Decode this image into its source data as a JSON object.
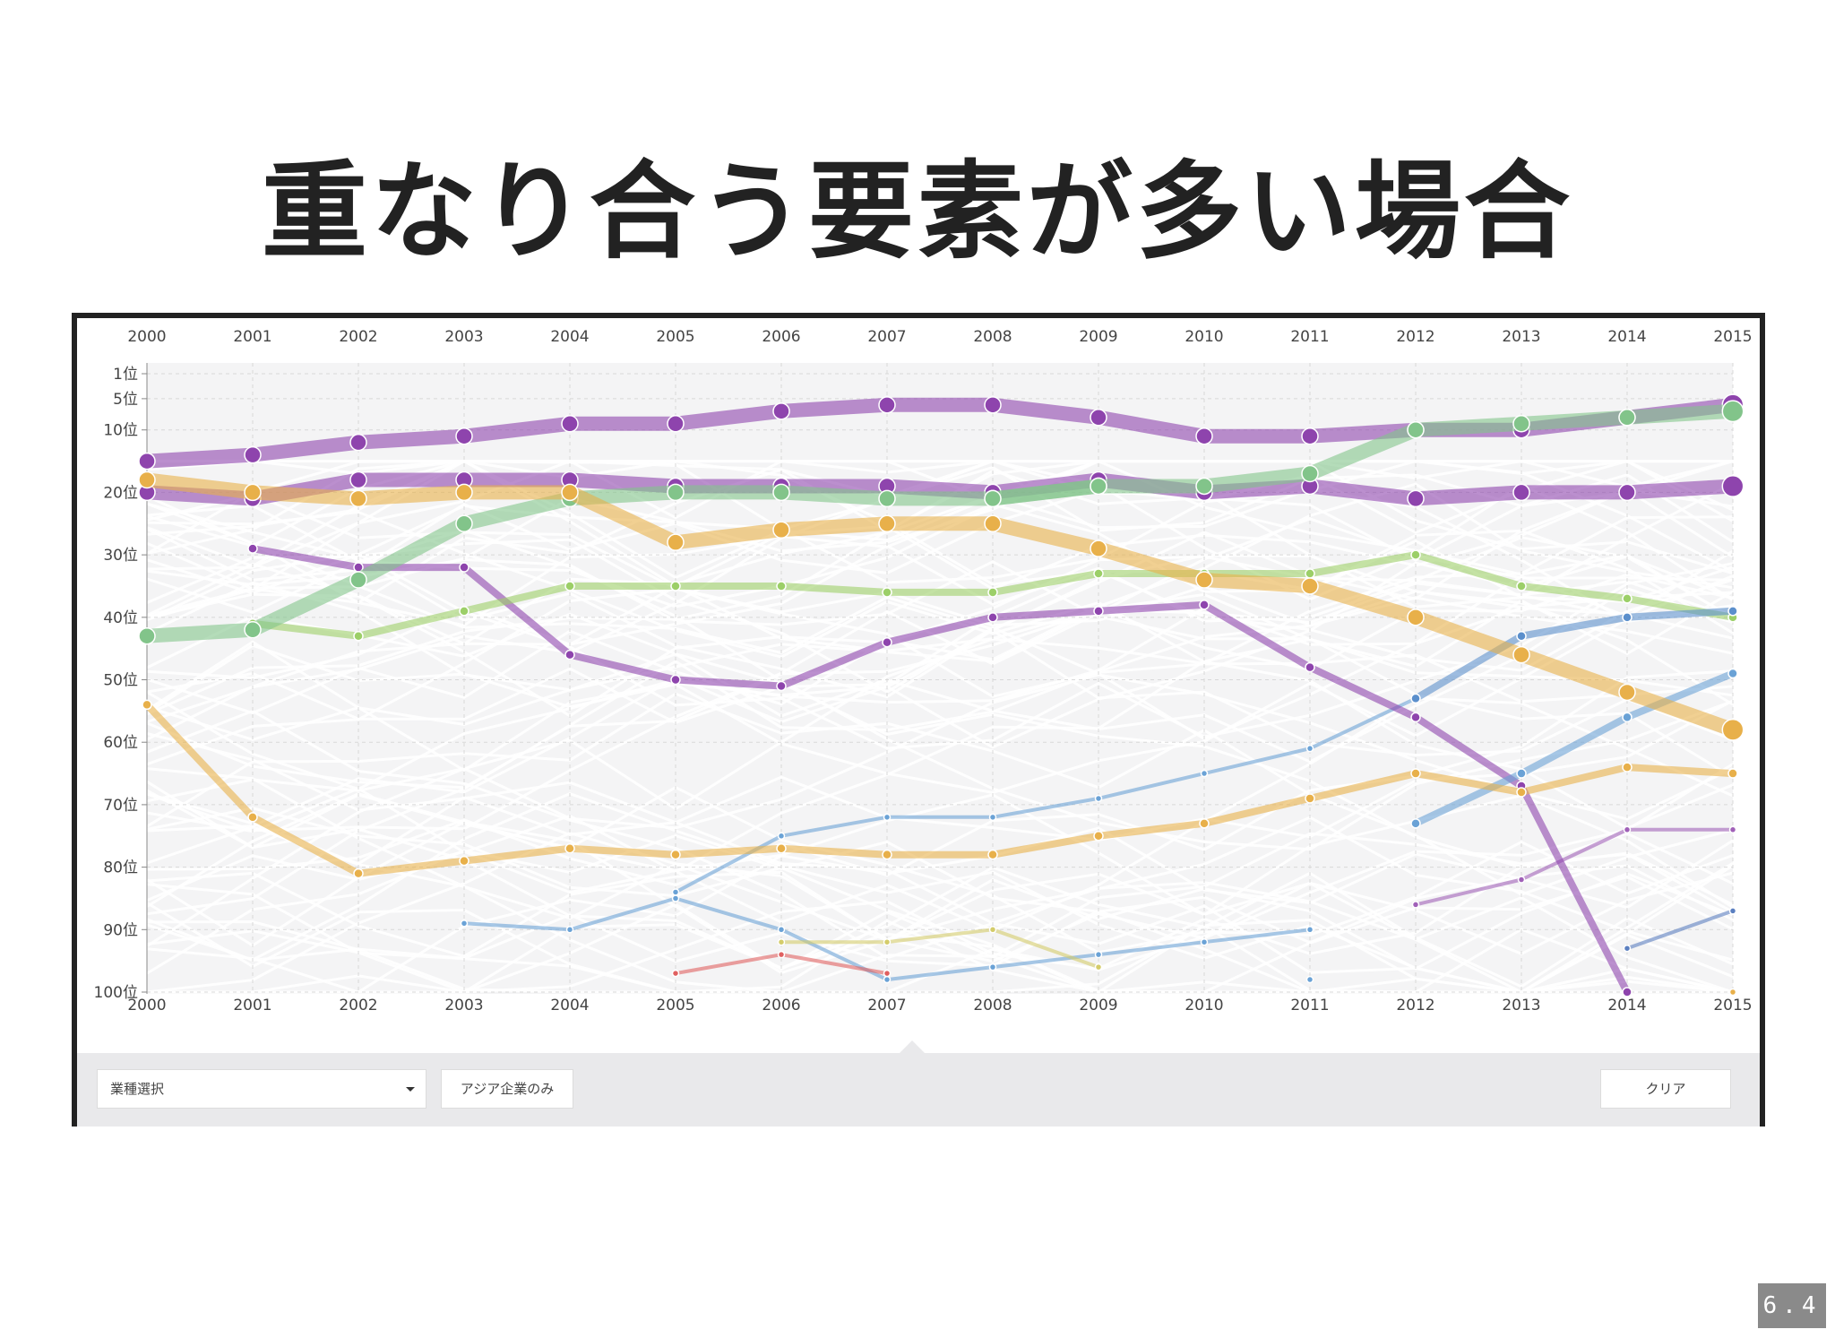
{
  "slide": {
    "title": "重なり合う要素が多い場合",
    "page_number": "6.4"
  },
  "controls": {
    "industry_select": "業種選択",
    "asia_only": "アジア企業のみ",
    "clear": "クリア"
  },
  "chart_data": {
    "type": "line",
    "title": "",
    "xlabel": "",
    "ylabel": "",
    "x": [
      2000,
      2001,
      2002,
      2003,
      2004,
      2005,
      2006,
      2007,
      2008,
      2009,
      2010,
      2011,
      2012,
      2013,
      2014,
      2015
    ],
    "x_ticks": [
      "2000",
      "2001",
      "2002",
      "2003",
      "2004",
      "2005",
      "2006",
      "2007",
      "2008",
      "2009",
      "2010",
      "2011",
      "2012",
      "2013",
      "2014",
      "2015"
    ],
    "y_ticks": [
      {
        "value": 1,
        "label": "1位"
      },
      {
        "value": 5,
        "label": "5位"
      },
      {
        "value": 10,
        "label": "10位"
      },
      {
        "value": 20,
        "label": "20位"
      },
      {
        "value": 30,
        "label": "30位"
      },
      {
        "value": 40,
        "label": "40位"
      },
      {
        "value": 50,
        "label": "50位"
      },
      {
        "value": 60,
        "label": "60位"
      },
      {
        "value": 70,
        "label": "70位"
      },
      {
        "value": 80,
        "label": "80位"
      },
      {
        "value": 90,
        "label": "90位"
      },
      {
        "value": 100,
        "label": "100位"
      }
    ],
    "ylim": [
      1,
      100
    ],
    "y_inverted": true,
    "grid": true,
    "background_lines": "many faint grey rank lines",
    "series": [
      {
        "color": "#8e44ad",
        "weight": "thick",
        "values": [
          15,
          14,
          12,
          11,
          9,
          9,
          7,
          6,
          6,
          8,
          11,
          11,
          10,
          10,
          8,
          6
        ]
      },
      {
        "color": "#8e44ad",
        "weight": "thick",
        "values": [
          20,
          21,
          18,
          18,
          18,
          19,
          19,
          19,
          20,
          18,
          20,
          19,
          21,
          20,
          20,
          19
        ]
      },
      {
        "color": "#82c48a",
        "weight": "thick",
        "values": [
          null,
          null,
          null,
          null,
          null,
          null,
          null,
          null,
          21,
          19,
          19,
          17,
          10,
          9,
          8,
          7
        ]
      },
      {
        "color": "#82c48a",
        "weight": "thick",
        "values": [
          43,
          42,
          34,
          25,
          21,
          20,
          20,
          21,
          21,
          19,
          null,
          null,
          null,
          null,
          null,
          null
        ]
      },
      {
        "color": "#e8b04a",
        "weight": "thick",
        "values": [
          18,
          20,
          21,
          20,
          20,
          28,
          26,
          25,
          25,
          29,
          34,
          35,
          40,
          46,
          52,
          58
        ]
      },
      {
        "color": "#8e44ad",
        "weight": "medium",
        "values": [
          null,
          29,
          32,
          32,
          46,
          50,
          51,
          44,
          40,
          39,
          38,
          48,
          56,
          67,
          100,
          null
        ]
      },
      {
        "color": "#9ccf68",
        "weight": "medium",
        "values": [
          null,
          41,
          43,
          39,
          35,
          35,
          35,
          36,
          36,
          33,
          33,
          33,
          30,
          35,
          37,
          40
        ]
      },
      {
        "color": "#5b8fcc",
        "weight": "medium",
        "values": [
          null,
          null,
          null,
          null,
          null,
          null,
          null,
          null,
          null,
          null,
          null,
          null,
          53,
          43,
          40,
          39
        ]
      },
      {
        "color": "#6aa2d6",
        "weight": "medium",
        "values": [
          null,
          null,
          null,
          null,
          null,
          null,
          null,
          null,
          null,
          null,
          null,
          null,
          73,
          65,
          56,
          49
        ]
      },
      {
        "color": "#e8b04a",
        "weight": "medium",
        "values": [
          54,
          72,
          81,
          79,
          77,
          78,
          77,
          78,
          78,
          75,
          73,
          69,
          65,
          68,
          64,
          65
        ]
      },
      {
        "color": "#6aa2d6",
        "weight": "thin",
        "values": [
          null,
          null,
          null,
          null,
          null,
          84,
          75,
          72,
          72,
          69,
          65,
          61,
          53,
          null,
          null,
          null
        ]
      },
      {
        "color": "#6aa2d6",
        "weight": "thin",
        "values": [
          null,
          null,
          null,
          89,
          90,
          85,
          90,
          98,
          96,
          94,
          92,
          90,
          null,
          null,
          null,
          null
        ]
      },
      {
        "color": "#6aa2d6",
        "weight": "thin",
        "values": [
          null,
          null,
          null,
          null,
          null,
          null,
          null,
          null,
          null,
          null,
          null,
          98,
          null,
          null,
          null,
          null
        ]
      },
      {
        "color": "#d4cc6a",
        "weight": "thin",
        "values": [
          null,
          null,
          null,
          null,
          null,
          null,
          92,
          92,
          90,
          96,
          null,
          null,
          null,
          null,
          null,
          null
        ]
      },
      {
        "color": "#e06060",
        "weight": "thin",
        "values": [
          null,
          null,
          null,
          null,
          null,
          97,
          94,
          97,
          null,
          null,
          null,
          null,
          null,
          null,
          null,
          null
        ]
      },
      {
        "color": "#a060b8",
        "weight": "thin",
        "values": [
          null,
          null,
          null,
          null,
          null,
          null,
          null,
          null,
          null,
          null,
          null,
          null,
          86,
          82,
          74,
          74
        ]
      },
      {
        "color": "#5b7fc0",
        "weight": "thin",
        "values": [
          null,
          null,
          null,
          null,
          null,
          null,
          null,
          null,
          null,
          null,
          null,
          null,
          null,
          null,
          93,
          87
        ]
      },
      {
        "color": "#e8b04a",
        "weight": "thin",
        "values": [
          null,
          null,
          null,
          null,
          null,
          null,
          null,
          null,
          null,
          null,
          null,
          null,
          null,
          null,
          null,
          100
        ]
      }
    ]
  }
}
